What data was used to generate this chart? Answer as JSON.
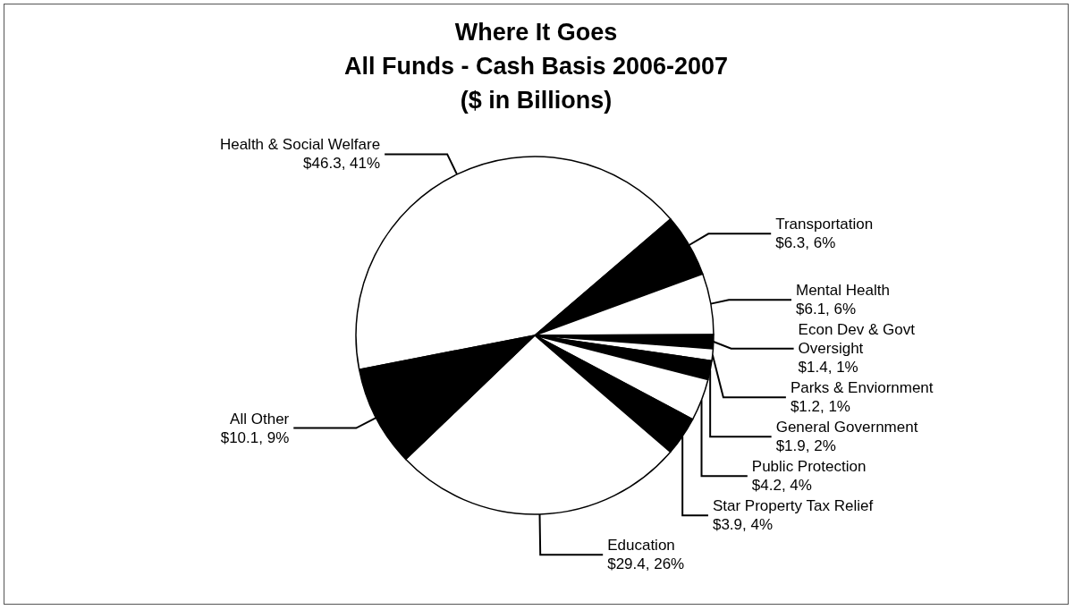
{
  "chart_data": {
    "type": "pie",
    "title": "Where It Goes",
    "subtitle": "All Funds - Cash Basis 2006-2007\n($ in Billions)",
    "categories": [
      "Health & Social Welfare",
      "Transportation",
      "Mental Health",
      "Econ Dev & Govt Oversight",
      "Parks & Enviornment",
      "General Government",
      "Public Protection",
      "Star Property Tax Relief",
      "Education",
      "All Other"
    ],
    "values": [
      46.3,
      6.3,
      6.1,
      1.4,
      1.2,
      1.9,
      4.2,
      3.9,
      29.4,
      10.1
    ],
    "value_labels": [
      "$46.3, 41%",
      "$6.3, 6%",
      "$6.1, 6%",
      "$1.4, 1%",
      "$1.2, 1%",
      "$1.9, 2%",
      "$4.2, 4%",
      "$3.9, 4%",
      "$29.4, 26%",
      "$10.1, 9%"
    ],
    "colors": [
      "#ffffff",
      "#000000",
      "#ffffff",
      "#000000",
      "#ffffff",
      "#000000",
      "#ffffff",
      "#000000",
      "#ffffff",
      "#000000"
    ],
    "legend": false
  }
}
